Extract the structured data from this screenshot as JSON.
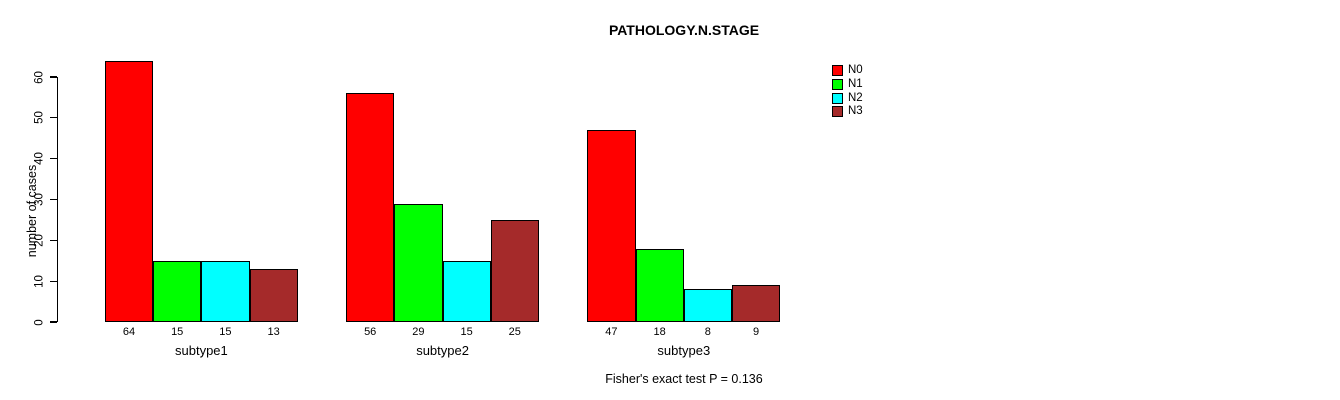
{
  "chart_data": {
    "type": "bar",
    "title": "PATHOLOGY.N.STAGE",
    "ylabel": "number of cases",
    "xlabel": "",
    "ylim": [
      0,
      60
    ],
    "yticks": [
      0,
      10,
      20,
      30,
      40,
      50,
      60
    ],
    "categories": [
      "subtype1",
      "subtype2",
      "subtype3"
    ],
    "series": [
      {
        "name": "N0",
        "color": "#ff0000",
        "values": [
          64,
          56,
          47
        ]
      },
      {
        "name": "N1",
        "color": "#00ff00",
        "values": [
          15,
          29,
          18
        ]
      },
      {
        "name": "N2",
        "color": "#00ffff",
        "values": [
          15,
          15,
          8
        ]
      },
      {
        "name": "N3",
        "color": "#a52a2a",
        "values": [
          13,
          25,
          9
        ]
      }
    ],
    "bar_value_labels": true,
    "legend_position": "right",
    "grid": false,
    "annotation": "Fisher's exact test P = 0.136"
  }
}
